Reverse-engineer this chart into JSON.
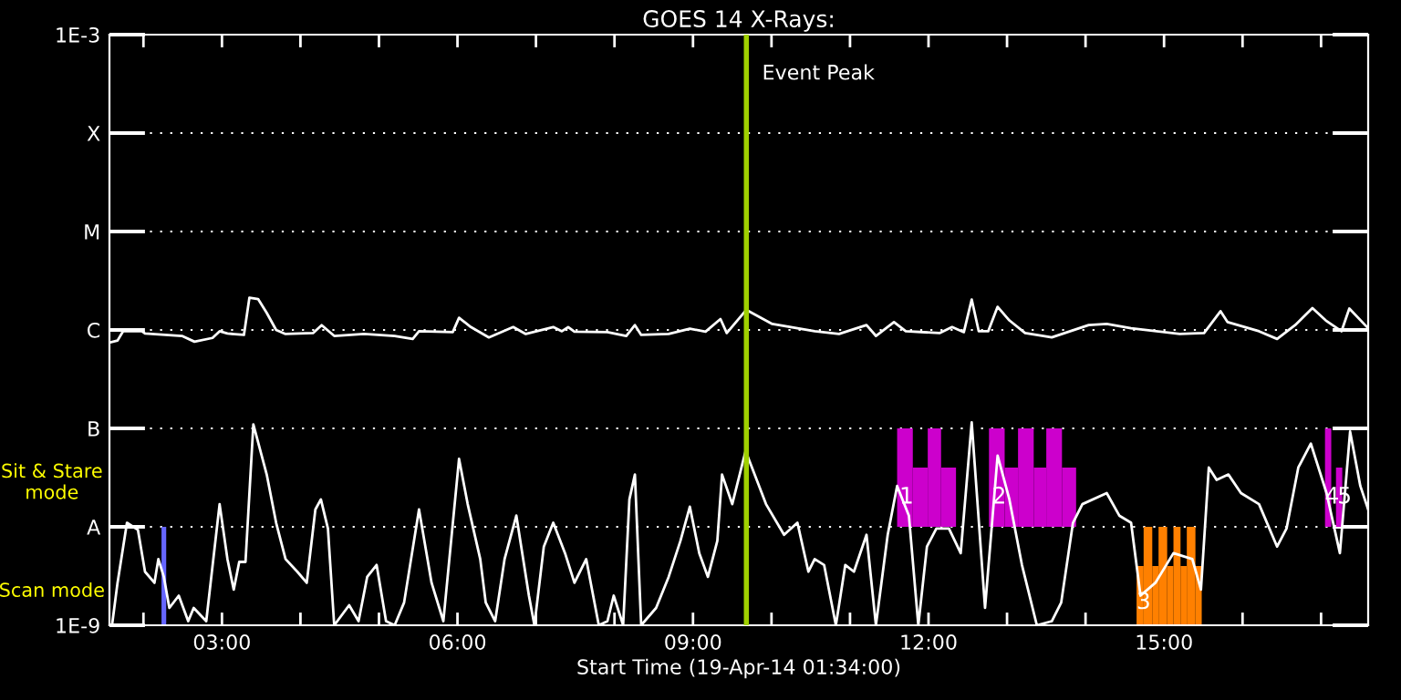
{
  "chart_data": {
    "type": "line",
    "title": "GOES 14 X-Rays:",
    "xlabel": "Start Time (19-Apr-14 01:34:00)",
    "log": "y",
    "grid": "y",
    "tick_labels": "xy",
    "xlim": [
      1.567,
      17.6
    ],
    "ylim": [
      1e-09,
      0.001
    ],
    "xticks": [
      {
        "value": 2,
        "label": null
      },
      {
        "value": 3,
        "label": "03:00"
      },
      {
        "value": 4,
        "label": null
      },
      {
        "value": 5,
        "label": null
      },
      {
        "value": 6,
        "label": "06:00"
      },
      {
        "value": 7,
        "label": null
      },
      {
        "value": 8,
        "label": null
      },
      {
        "value": 9,
        "label": "09:00"
      },
      {
        "value": 10,
        "label": null
      },
      {
        "value": 11,
        "label": null
      },
      {
        "value": 12,
        "label": "12:00"
      },
      {
        "value": 13,
        "label": null
      },
      {
        "value": 14,
        "label": null
      },
      {
        "value": 15,
        "label": "15:00"
      },
      {
        "value": 16,
        "label": null
      },
      {
        "value": 17,
        "label": null
      }
    ],
    "yticks": [
      {
        "value": 1e-09,
        "label": "1E-9"
      },
      {
        "value": 1e-08,
        "label": "A"
      },
      {
        "value": 1e-07,
        "label": "B"
      },
      {
        "value": 1e-06,
        "label": "C"
      },
      {
        "value": 1e-05,
        "label": "M"
      },
      {
        "value": 0.0001,
        "label": "X"
      },
      {
        "value": 0.001,
        "label": "1E-3"
      }
    ],
    "ref_lines": [
      {
        "axis": "x",
        "value": 9.68,
        "label": "Event Peak",
        "color": "#a0d000"
      }
    ],
    "annotations": [
      "Sit & Stare\nmode",
      "Scan mode",
      {
        "text": "1",
        "x": 11.72,
        "y": 2e-08
      },
      {
        "text": "2",
        "x": 12.9,
        "y": 2e-08
      },
      {
        "text": "3",
        "x": 14.74,
        "y": 1.7e-09
      },
      {
        "text": "4",
        "x": 17.14,
        "y": 2e-08
      },
      {
        "text": "5",
        "x": 17.3,
        "y": 2e-08
      }
    ],
    "series": [
      {
        "type": "histogram",
        "color": "#6666ff",
        "bins": [
          2.23,
          2.29
        ],
        "values": [
          9e-09
        ],
        "base": [
          1e-09
        ]
      },
      {
        "type": "histogram",
        "color": "#cc00cc",
        "bins": [
          11.6,
          11.8,
          11.99,
          12.16,
          12.35
        ],
        "values": [
          9e-08,
          3e-08,
          9e-08,
          3e-08
        ],
        "base": [
          1e-08,
          1e-08,
          1e-08,
          1e-08
        ]
      },
      {
        "type": "histogram",
        "color": "#cc00cc",
        "bins": [
          12.77,
          12.97,
          13.14,
          13.34,
          13.5,
          13.7,
          13.88
        ],
        "values": [
          9e-08,
          3e-08,
          9e-08,
          3e-08,
          9e-08,
          3e-08
        ],
        "base": [
          1e-08,
          1e-08,
          1e-08,
          1e-08,
          1e-08,
          1e-08
        ]
      },
      {
        "type": "histogram",
        "color": "#ff8000",
        "bins": [
          14.65,
          14.74,
          14.85,
          14.93,
          15.04,
          15.12,
          15.21,
          15.29,
          15.4,
          15.48
        ],
        "values": [
          3e-09,
          9e-09,
          3e-09,
          9e-09,
          3e-09,
          9e-09,
          3e-09,
          9e-09,
          3e-09
        ],
        "base": [
          1e-09,
          1e-09,
          1e-09,
          1e-09,
          1e-09,
          1e-09,
          1e-09,
          1e-09,
          1e-09
        ]
      },
      {
        "type": "histogram",
        "color": "#cc00cc",
        "bins": [
          17.05,
          17.13
        ],
        "values": [
          9e-08
        ],
        "base": [
          1e-08
        ]
      },
      {
        "type": "histogram",
        "color": "#cc00cc",
        "bins": [
          17.19,
          17.27
        ],
        "values": [
          3e-08
        ],
        "base": [
          1e-08
        ]
      },
      {
        "color": "#ffffff",
        "x": [
          1.58,
          1.67,
          1.74,
          1.98,
          2.02,
          2.49,
          2.65,
          2.88,
          2.97,
          3.07,
          3.28,
          3.35,
          3.46,
          3.57,
          3.69,
          3.81,
          4.16,
          4.27,
          4.43,
          4.81,
          5.2,
          5.43,
          5.51,
          5.94,
          6.02,
          6.17,
          6.4,
          6.71,
          6.87,
          7.22,
          7.33,
          7.41,
          7.49,
          7.91,
          8.15,
          8.26,
          8.34,
          8.69,
          8.96,
          9.16,
          9.35,
          9.43,
          9.68,
          10.01,
          10.55,
          10.86,
          11.21,
          11.33,
          11.56,
          11.71,
          12.14,
          12.3,
          12.45,
          12.55,
          12.64,
          12.76,
          12.88,
          13.03,
          13.23,
          13.57,
          14.04,
          14.27,
          14.58,
          15.2,
          15.51,
          15.72,
          15.81,
          16.21,
          16.44,
          16.67,
          16.89,
          17.06,
          17.26,
          17.36,
          17.6
        ],
        "values": [
          7.5e-07,
          7.8e-07,
          9.7e-07,
          9.7e-07,
          9.2e-07,
          8.7e-07,
          7.6e-07,
          8.3e-07,
          9.7e-07,
          9.2e-07,
          8.9e-07,
          2.13e-06,
          2.06e-06,
          1.49e-06,
          1e-06,
          9.1e-07,
          9.3e-07,
          1.12e-06,
          8.7e-07,
          9.1e-07,
          8.7e-07,
          8.1e-07,
          9.7e-07,
          9.5e-07,
          1.33e-06,
          1.07e-06,
          8.4e-07,
          1.07e-06,
          9.1e-07,
          1.07e-06,
          9.7e-07,
          1.07e-06,
          9.6e-07,
          9.5e-07,
          8.7e-07,
          1.12e-06,
          8.9e-07,
          9.1e-07,
          1.03e-06,
          9.6e-07,
          1.29e-06,
          9.3e-07,
          1.6e-06,
          1.15e-06,
          9.7e-07,
          9.1e-07,
          1.12e-06,
          8.7e-07,
          1.2e-06,
          9.7e-07,
          9.3e-07,
          1.07e-06,
          9.5e-07,
          2.04e-06,
          9.7e-07,
          9.7e-07,
          1.72e-06,
          1.25e-06,
          9.3e-07,
          8.4e-07,
          1.12e-06,
          1.15e-06,
          1.04e-06,
          9.1e-07,
          9.3e-07,
          1.55e-06,
          1.2e-06,
          9.7e-07,
          8.1e-07,
          1.12e-06,
          1.67e-06,
          1.25e-06,
          9.7e-07,
          1.65e-06,
          1.04e-06
        ]
      },
      {
        "color": "#ffffff",
        "x": [
          1.6,
          1.67,
          1.79,
          1.93,
          2.02,
          2.14,
          2.19,
          2.26,
          2.33,
          2.45,
          2.57,
          2.64,
          2.8,
          2.97,
          3.07,
          3.15,
          3.22,
          3.3,
          3.4,
          3.57,
          3.69,
          3.81,
          3.96,
          4.08,
          4.19,
          4.26,
          4.35,
          4.43,
          4.62,
          4.74,
          4.85,
          4.97,
          5.09,
          5.2,
          5.32,
          5.51,
          5.67,
          5.82,
          6.02,
          6.13,
          6.29,
          6.36,
          6.48,
          6.6,
          6.75,
          6.91,
          6.98,
          7.1,
          7.22,
          7.37,
          7.49,
          7.64,
          7.8,
          7.91,
          7.99,
          8.11,
          8.19,
          8.26,
          8.34,
          8.53,
          8.69,
          8.84,
          8.96,
          9.08,
          9.19,
          9.31,
          9.37,
          9.5,
          9.67,
          9.93,
          10.16,
          10.33,
          10.47,
          10.55,
          10.67,
          10.82,
          10.94,
          11.05,
          11.21,
          11.33,
          11.48,
          11.6,
          11.75,
          11.87,
          11.98,
          12.1,
          12.26,
          12.41,
          12.55,
          12.72,
          12.88,
          13.03,
          13.19,
          13.38,
          13.57,
          13.69,
          13.84,
          13.96,
          14.27,
          14.43,
          14.58,
          14.7,
          14.89,
          15.12,
          15.36,
          15.47,
          15.57,
          15.67,
          15.82,
          15.98,
          16.21,
          16.44,
          16.56,
          16.71,
          16.87,
          17.07,
          17.24,
          17.37,
          17.5,
          17.6
        ],
        "values": [
          1e-09,
          2.7e-09,
          1.1e-08,
          9.3e-09,
          3.5e-09,
          2.7e-09,
          4.7e-09,
          3.1e-09,
          1.5e-09,
          2e-09,
          1.1e-09,
          1.5e-09,
          1.1e-09,
          1.7e-08,
          4.7e-09,
          2.3e-09,
          4.4e-09,
          4.4e-09,
          1.1e-07,
          3.4e-08,
          1.1e-08,
          4.7e-09,
          3.5e-09,
          2.7e-09,
          1.5e-08,
          1.9e-08,
          9.6e-09,
          1e-09,
          1.6e-09,
          1.1e-09,
          3.1e-09,
          4.1e-09,
          1.1e-09,
          1e-09,
          1.7e-09,
          1.5e-08,
          2.7e-09,
          1.1e-09,
          4.9e-08,
          1.7e-08,
          4.7e-09,
          1.7e-09,
          1.1e-09,
          4.7e-09,
          1.3e-08,
          2e-09,
          1e-09,
          6.3e-09,
          1.1e-08,
          5.4e-09,
          2.7e-09,
          4.7e-09,
          1e-09,
          1.1e-09,
          2e-09,
          1e-09,
          1.9e-08,
          3.4e-08,
          1e-09,
          1.5e-09,
          3.1e-09,
          7.2e-09,
          1.6e-08,
          5.4e-09,
          3.1e-09,
          7.2e-09,
          3.4e-08,
          1.7e-08,
          5.9e-08,
          1.7e-08,
          8.3e-09,
          1.1e-08,
          3.5e-09,
          4.7e-09,
          4.1e-09,
          1e-09,
          4.1e-09,
          3.5e-09,
          8.3e-09,
          1e-09,
          8.3e-09,
          2.6e-08,
          1.3e-08,
          1e-09,
          6.3e-09,
          9.6e-09,
          9.6e-09,
          5.4e-09,
          1.15e-07,
          1.5e-09,
          5.3e-08,
          1.9e-08,
          4.1e-09,
          1e-09,
          1.1e-09,
          1.7e-09,
          1.1e-08,
          1.7e-08,
          2.2e-08,
          1.3e-08,
          1.1e-08,
          2e-09,
          2.7e-09,
          5.4e-09,
          4.7e-09,
          2.3e-09,
          4e-08,
          3e-08,
          3.4e-08,
          2.2e-08,
          1.7e-08,
          6.3e-09,
          9.6e-09,
          4e-08,
          7e-08,
          2.2e-08,
          5.4e-09,
          9.3e-08,
          2.6e-08,
          1.5e-08
        ]
      }
    ]
  }
}
